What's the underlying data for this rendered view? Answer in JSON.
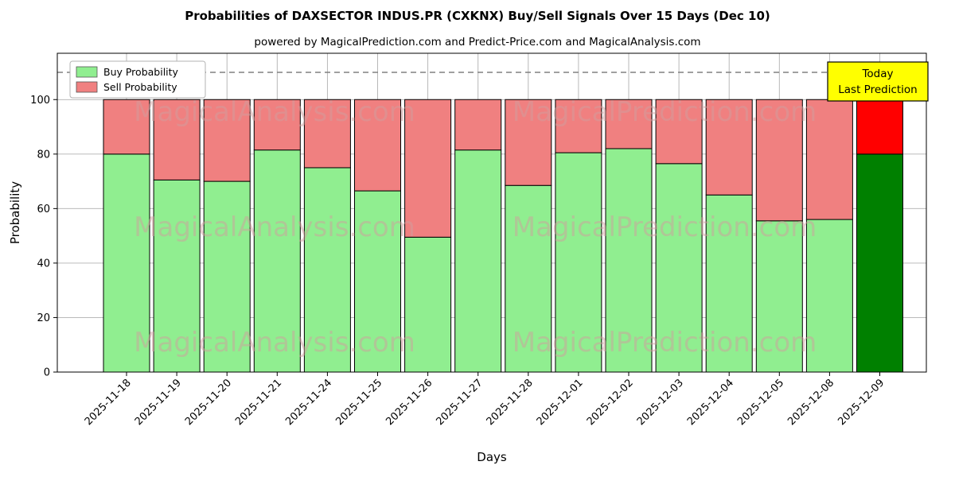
{
  "header": {
    "title": "Probabilities of DAXSECTOR INDUS.PR (CXKNX) Buy/Sell Signals Over 15 Days (Dec 10)",
    "subtitle": "powered by MagicalPrediction.com and Predict-Price.com and MagicalAnalysis.com"
  },
  "legend": {
    "items": [
      {
        "label": "Buy Probability",
        "color": "#90ee90"
      },
      {
        "label": "Sell Probability",
        "color": "#f08080"
      }
    ]
  },
  "annotation_box": {
    "lines": [
      "Today",
      "Last Prediction"
    ],
    "bg_color": "#ffff00",
    "border_color": "#000000"
  },
  "watermarks": {
    "left": "MagicalAnalysis.com",
    "right": "MagicalPrediction.com"
  },
  "chart_data": {
    "type": "bar",
    "stacked": true,
    "xlabel": "Days",
    "ylabel": "Probability",
    "categories": [
      "2025-11-18",
      "2025-11-19",
      "2025-11-20",
      "2025-11-21",
      "2025-11-24",
      "2025-11-25",
      "2025-11-26",
      "2025-11-27",
      "2025-11-28",
      "2025-12-01",
      "2025-12-02",
      "2025-12-03",
      "2025-12-04",
      "2025-12-05",
      "2025-12-08",
      "2025-12-09"
    ],
    "series": [
      {
        "name": "Buy Probability",
        "color": "#90ee90",
        "values": [
          80,
          70.5,
          70,
          81.5,
          75,
          66.5,
          49.5,
          81.5,
          68.5,
          80.5,
          82,
          76.5,
          65,
          55.5,
          56,
          80
        ]
      },
      {
        "name": "Sell Probability",
        "color": "#f08080",
        "values": [
          20,
          29.5,
          30,
          18.5,
          25,
          33.5,
          50.5,
          18.5,
          31.5,
          19.5,
          18,
          23.5,
          35,
          44.5,
          44,
          20
        ]
      }
    ],
    "highlight_last_bar": {
      "buy_color": "#008000",
      "sell_color": "#ff0000"
    },
    "ylim": [
      0,
      117
    ],
    "yticks": [
      0,
      20,
      40,
      60,
      80,
      100
    ],
    "reference_line_y": 110,
    "grid": true,
    "bar_edge_color": "#000000",
    "grid_color": "#b0b0b0",
    "reference_line_color": "#808080",
    "watermark_color": "#cf9d9d"
  }
}
